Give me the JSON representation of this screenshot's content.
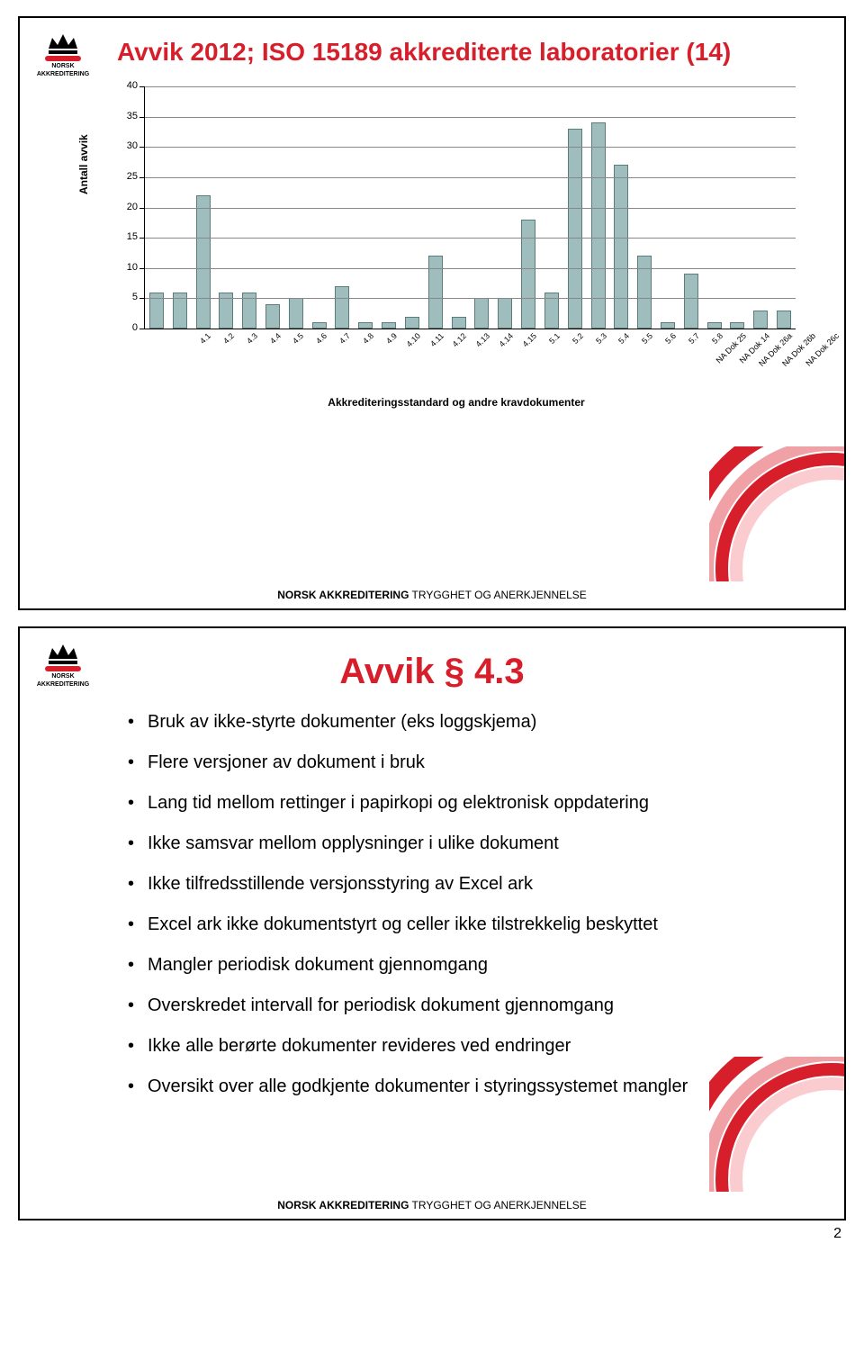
{
  "logo": {
    "org_line1": "NORSK",
    "org_line2": "AKKREDITERING"
  },
  "footer": {
    "brand_bold": "NORSK AKKREDITERING",
    "brand_rest": " TRYGGHET OG ANERKJENNELSE"
  },
  "page_number": "2",
  "slide1": {
    "title": "Avvik 2012; ISO 15189 akkrediterte laboratorier (14)",
    "chart": {
      "type": "bar",
      "ylabel": "Antall avvik",
      "xlabel": "Akkrediteringsstandard og andre kravdokumenter",
      "ylim": [
        0,
        40
      ],
      "ytick_step": 5,
      "bar_color": "#9fbdbd",
      "bar_border": "#5a7d7d",
      "grid_color": "#888888",
      "categories": [
        "4.1",
        "4.2",
        "4.3",
        "4.4",
        "4.5",
        "4.6",
        "4.7",
        "4.8",
        "4.9",
        "4.10",
        "4.11",
        "4.12",
        "4.13",
        "4.14",
        "4.15",
        "5.1",
        "5.2",
        "5.3",
        "5.4",
        "5.5",
        "5.6",
        "5.7",
        "5.8",
        "NA Dok 25",
        "NA Dok 14",
        "NA Dok 26a",
        "NA Dok 26b",
        "NA Dok 26c"
      ],
      "values": [
        6,
        6,
        22,
        6,
        6,
        4,
        5,
        1,
        7,
        1,
        1,
        2,
        12,
        2,
        5,
        5,
        18,
        6,
        33,
        34,
        27,
        12,
        1,
        9,
        1,
        1,
        3,
        3
      ]
    }
  },
  "slide2": {
    "title": "Avvik § 4.3",
    "bullets": [
      "Bruk av ikke-styrte dokumenter (eks loggskjema)",
      "Flere versjoner av dokument i bruk",
      "Lang tid mellom rettinger i papirkopi og elektronisk oppdatering",
      "Ikke samsvar mellom opplysninger i ulike dokument",
      "Ikke tilfredsstillende versjonsstyring av Excel ark",
      "Excel ark ikke dokumentstyrt og celler ikke tilstrekkelig beskyttet",
      "Mangler periodisk dokument gjennomgang",
      "Overskredet intervall for periodisk dokument gjennomgang",
      "Ikke alle berørte dokumenter revideres ved endringer",
      "Oversikt over alle godkjente dokumenter i styringssystemet mangler"
    ]
  }
}
